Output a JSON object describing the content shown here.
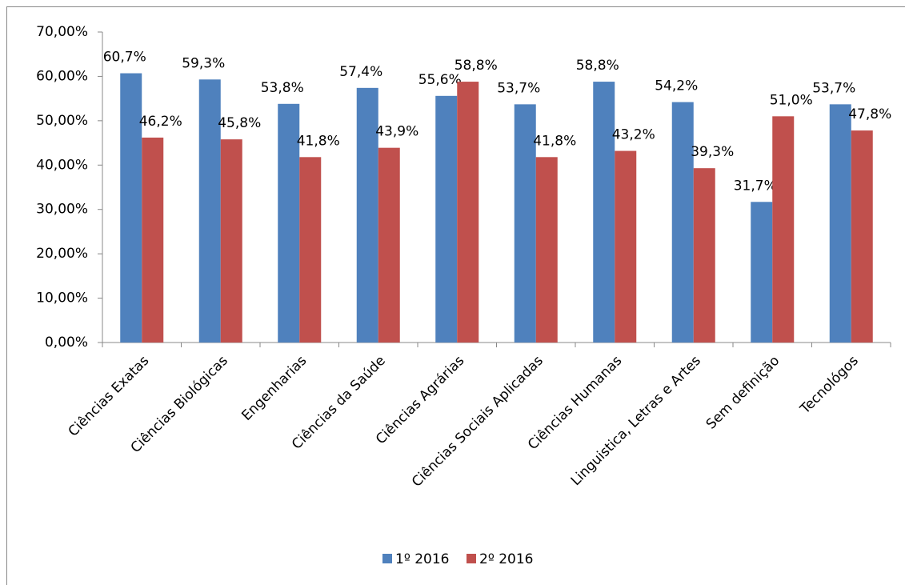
{
  "chart_data": {
    "type": "bar",
    "categories": [
      "Ciências Exatas",
      "Ciências Biológicas",
      "Engenharias",
      "Ciências da Saúde",
      "Ciências Agrárias",
      "Ciências Sociais Aplicadas",
      "Ciências Humanas",
      "Linguistica, Letras e Artes",
      "Sem definição",
      "Tecnológos"
    ],
    "series": [
      {
        "name": "1º 2016",
        "color": "#4f81bd",
        "values": [
          60.7,
          59.3,
          53.8,
          57.4,
          55.6,
          53.7,
          58.8,
          54.2,
          31.7,
          53.7
        ],
        "value_labels": [
          "60,7%",
          "59,3%",
          "53,8%",
          "57,4%",
          "55,6%",
          "53,7%",
          "58,8%",
          "54,2%",
          "31,7%",
          "53,7%"
        ]
      },
      {
        "name": "2º 2016",
        "color": "#c0504d",
        "values": [
          46.2,
          45.8,
          41.8,
          43.9,
          58.8,
          41.8,
          43.2,
          39.3,
          51.0,
          47.8
        ],
        "value_labels": [
          "46,2%",
          "45,8%",
          "41,8%",
          "43,9%",
          "58,8%",
          "41,8%",
          "43,2%",
          "39,3%",
          "51,0%",
          "47,8%"
        ]
      }
    ],
    "ylim": [
      0,
      70
    ],
    "yticks": [
      {
        "value": 0,
        "label": "0,00%"
      },
      {
        "value": 10,
        "label": "10,00%"
      },
      {
        "value": 20,
        "label": "20,00%"
      },
      {
        "value": 30,
        "label": "30,00%"
      },
      {
        "value": 40,
        "label": "40,00%"
      },
      {
        "value": 50,
        "label": "50,00%"
      },
      {
        "value": 60,
        "label": "60,00%"
      },
      {
        "value": 70,
        "label": "70,00%"
      }
    ],
    "legend": "bottom"
  }
}
